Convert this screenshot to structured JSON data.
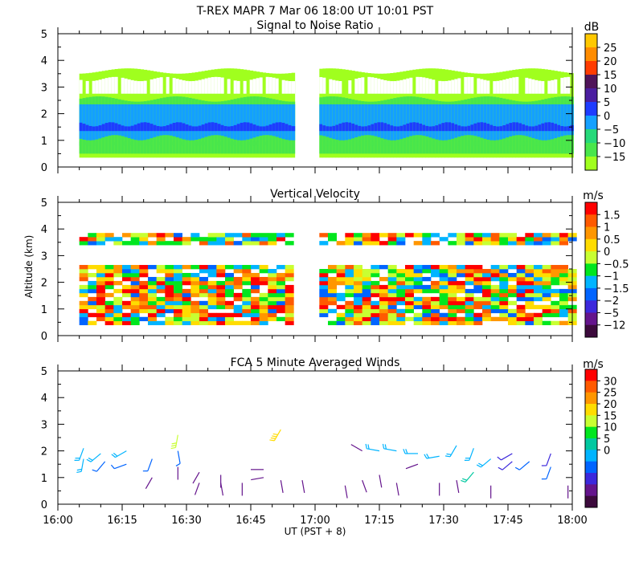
{
  "header": {
    "title": "T-REX   MAPR   7 Mar 06   18:00 UT   10:01   PST"
  },
  "chart_data": [
    {
      "type": "heatmap",
      "title": "Signal to Noise Ratio",
      "units": "dB",
      "yticks": [
        0,
        1,
        2,
        3,
        4,
        5
      ],
      "ylim": [
        0,
        5
      ],
      "xlim_minutes": [
        0,
        120
      ],
      "data_segments_minutes": [
        [
          5,
          55
        ],
        [
          61,
          120
        ]
      ],
      "colorbar": {
        "labels": [
          "25",
          "20",
          "15",
          "10",
          "5",
          "0",
          "−5",
          "−10",
          "−15"
        ],
        "colors": [
          "#ffc800",
          "#ff8c00",
          "#ff3c00",
          "#50145a",
          "#4b1ea0",
          "#1e3cff",
          "#14a0ff",
          "#26d97a",
          "#49e64b",
          "#a0ff1e"
        ]
      },
      "layers": [
        {
          "name": "noise",
          "value_db": -15,
          "ymin": 0.4,
          "ymax": 3.7
        },
        {
          "name": "lower",
          "value_db": -10,
          "ymin": 0.5,
          "ymax": 2.6
        },
        {
          "name": "mid",
          "value_db": -5,
          "ymin": 1.1,
          "ymax": 2.4
        },
        {
          "name": "core",
          "value_db": 0,
          "ymin": 1.35,
          "ymax": 1.6
        }
      ]
    },
    {
      "type": "heatmap",
      "title": "Vertical Velocity",
      "units": "m/s",
      "ylabel": "Altitude (km)",
      "yticks": [
        0,
        1,
        2,
        3,
        4,
        5
      ],
      "ylim": [
        0,
        5
      ],
      "xlim_minutes": [
        0,
        120
      ],
      "colorbar": {
        "labels": [
          "1.5",
          "1",
          "0.5",
          "0",
          "−0.5",
          "−1",
          "−1.5",
          "−2",
          "−5",
          "−12"
        ],
        "colors": [
          "#ff0000",
          "#ff5a00",
          "#ff9600",
          "#ffdc00",
          "#c8ff32",
          "#00e61e",
          "#00b4ff",
          "#0064ff",
          "#3c28dc",
          "#64148c",
          "#3c0a3c"
        ]
      },
      "coverage_km": [
        [
          0.4,
          2.5
        ],
        [
          3.4,
          3.7
        ]
      ]
    },
    {
      "type": "scatter",
      "title": "FCA 5 Minute Averaged Winds",
      "units": "m/s",
      "xlabel": "UT  (PST + 8)",
      "yticks": [
        0,
        1,
        2,
        3,
        4,
        5
      ],
      "ylim": [
        0,
        5
      ],
      "xtick_labels": [
        "16:00",
        "16:15",
        "16:30",
        "16:45",
        "17:00",
        "17:15",
        "17:30",
        "17:45",
        "18:00"
      ],
      "xtick_minutes": [
        0,
        15,
        30,
        45,
        60,
        75,
        90,
        105,
        120
      ],
      "colorbar": {
        "labels": [
          "30",
          "25",
          "20",
          "15",
          "10",
          "5",
          "0"
        ],
        "colors": [
          "#ff0000",
          "#ff5a00",
          "#ff9600",
          "#ffdc00",
          "#c8ff32",
          "#00e61e",
          "#00c8a0",
          "#00b4ff",
          "#0064ff",
          "#3c28dc",
          "#64148c",
          "#3c0a3c"
        ]
      },
      "barbs": [
        {
          "t": 6,
          "alt": 2.1,
          "dir": 200,
          "speed": 10
        },
        {
          "t": 6,
          "alt": 1.7,
          "dir": 190,
          "speed": 10
        },
        {
          "t": 10,
          "alt": 1.9,
          "dir": 230,
          "speed": 12
        },
        {
          "t": 11,
          "alt": 1.6,
          "dir": 220,
          "speed": 8
        },
        {
          "t": 16,
          "alt": 2.0,
          "dir": 240,
          "speed": 10
        },
        {
          "t": 16,
          "alt": 1.5,
          "dir": 250,
          "speed": 8
        },
        {
          "t": 22,
          "alt": 1.7,
          "dir": 200,
          "speed": 7
        },
        {
          "t": 22,
          "alt": 1.0,
          "dir": 210,
          "speed": 4
        },
        {
          "t": 28,
          "alt": 2.6,
          "dir": 190,
          "speed": 18
        },
        {
          "t": 28,
          "alt": 2.0,
          "dir": 170,
          "speed": 9
        },
        {
          "t": 28,
          "alt": 1.4,
          "dir": 180,
          "speed": 4
        },
        {
          "t": 33,
          "alt": 1.2,
          "dir": 210,
          "speed": 3
        },
        {
          "t": 33,
          "alt": 0.8,
          "dir": 200,
          "speed": 3
        },
        {
          "t": 38,
          "alt": 1.1,
          "dir": 180,
          "speed": 3
        },
        {
          "t": 38,
          "alt": 0.8,
          "dir": 170,
          "speed": 3
        },
        {
          "t": 43,
          "alt": 0.8,
          "dir": 180,
          "speed": 3
        },
        {
          "t": 48,
          "alt": 1.3,
          "dir": 270,
          "speed": 3
        },
        {
          "t": 48,
          "alt": 1.0,
          "dir": 260,
          "speed": 3
        },
        {
          "t": 52,
          "alt": 2.8,
          "dir": 210,
          "speed": 22
        },
        {
          "t": 52,
          "alt": 0.9,
          "dir": 170,
          "speed": 3
        },
        {
          "t": 57,
          "alt": 0.9,
          "dir": 170,
          "speed": 3
        },
        {
          "t": 67,
          "alt": 0.7,
          "dir": 170,
          "speed": 3
        },
        {
          "t": 71,
          "alt": 2.0,
          "dir": 300,
          "speed": 4
        },
        {
          "t": 71,
          "alt": 0.9,
          "dir": 160,
          "speed": 3
        },
        {
          "t": 75,
          "alt": 2.0,
          "dir": 280,
          "speed": 10
        },
        {
          "t": 75,
          "alt": 1.1,
          "dir": 170,
          "speed": 3
        },
        {
          "t": 79,
          "alt": 2.0,
          "dir": 280,
          "speed": 10
        },
        {
          "t": 79,
          "alt": 0.8,
          "dir": 170,
          "speed": 3
        },
        {
          "t": 84,
          "alt": 1.9,
          "dir": 270,
          "speed": 11
        },
        {
          "t": 84,
          "alt": 1.5,
          "dir": 250,
          "speed": 4
        },
        {
          "t": 89,
          "alt": 1.8,
          "dir": 260,
          "speed": 10
        },
        {
          "t": 89,
          "alt": 0.8,
          "dir": 180,
          "speed": 3
        },
        {
          "t": 93,
          "alt": 2.2,
          "dir": 210,
          "speed": 12
        },
        {
          "t": 93,
          "alt": 0.9,
          "dir": 170,
          "speed": 3
        },
        {
          "t": 97,
          "alt": 2.1,
          "dir": 200,
          "speed": 12
        },
        {
          "t": 97,
          "alt": 1.2,
          "dir": 220,
          "speed": 14
        },
        {
          "t": 101,
          "alt": 1.7,
          "dir": 230,
          "speed": 12
        },
        {
          "t": 101,
          "alt": 0.7,
          "dir": 180,
          "speed": 3
        },
        {
          "t": 106,
          "alt": 1.9,
          "dir": 240,
          "speed": 5
        },
        {
          "t": 106,
          "alt": 1.6,
          "dir": 230,
          "speed": 5
        },
        {
          "t": 110,
          "alt": 1.6,
          "dir": 230,
          "speed": 7
        },
        {
          "t": 115,
          "alt": 1.9,
          "dir": 200,
          "speed": 5
        },
        {
          "t": 115,
          "alt": 1.4,
          "dir": 200,
          "speed": 7
        },
        {
          "t": 119,
          "alt": 0.7,
          "dir": 180,
          "speed": 3
        }
      ]
    }
  ]
}
